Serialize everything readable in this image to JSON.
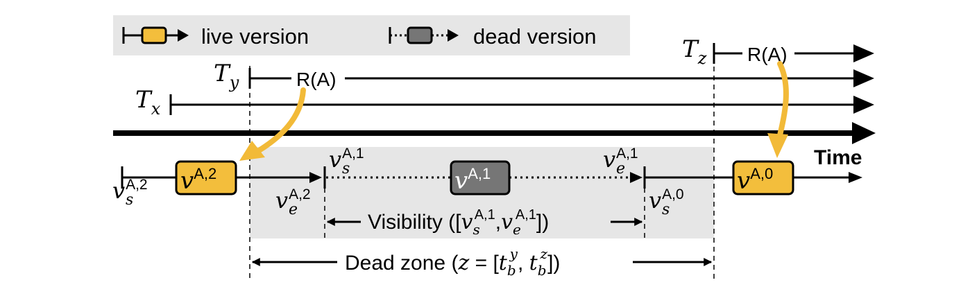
{
  "legend": {
    "live_label": "live version",
    "dead_label": "dead version"
  },
  "transactions": [
    {
      "id": "x",
      "label": "T",
      "sub": "x"
    },
    {
      "id": "y",
      "label": "T",
      "sub": "y",
      "read_label": "R(A)"
    },
    {
      "id": "z",
      "label": "T",
      "sub": "z",
      "read_label": "R(A)"
    }
  ],
  "time_label": "Time",
  "versions": [
    {
      "id": "A2",
      "state": "live",
      "base": "v",
      "sup": "A,2"
    },
    {
      "id": "A1",
      "state": "dead",
      "base": "v",
      "sup": "A,1"
    },
    {
      "id": "A0",
      "state": "live",
      "base": "v",
      "sup": "A,0"
    }
  ],
  "endpoints": [
    {
      "id": "vs-A2",
      "base": "v",
      "sub": "s",
      "sup": "A,2"
    },
    {
      "id": "ve-A2",
      "base": "v",
      "sub": "e",
      "sup": "A,2"
    },
    {
      "id": "vs-A1",
      "base": "v",
      "sub": "s",
      "sup": "A,1"
    },
    {
      "id": "ve-A1",
      "base": "v",
      "sub": "e",
      "sup": "A,1"
    },
    {
      "id": "vs-A0",
      "base": "v",
      "sub": "s",
      "sup": "A,0"
    }
  ],
  "visibility": {
    "prefix": "Visibility ([",
    "comma": ",",
    "suffix": "])",
    "start": {
      "base": "v",
      "sub": "s",
      "sup": "A,1"
    },
    "end": {
      "base": "v",
      "sub": "e",
      "sup": "A,1"
    }
  },
  "dead_zone": {
    "prefix": "Dead zone (",
    "var": "z",
    "mid": " = [",
    "t1": {
      "base": "t",
      "sub": "b",
      "sup": "y"
    },
    "comma": ", ",
    "t2": {
      "base": "t",
      "sub": "b",
      "sup": "z"
    },
    "suffix": "])"
  },
  "colors": {
    "live_fill": "#F3BE3C",
    "dead_fill": "#767676",
    "arrow_orange": "#F2BA38",
    "zone_bg": "#E6E6E6",
    "legend_bg": "#E6E6E6",
    "ink": "#000000"
  }
}
